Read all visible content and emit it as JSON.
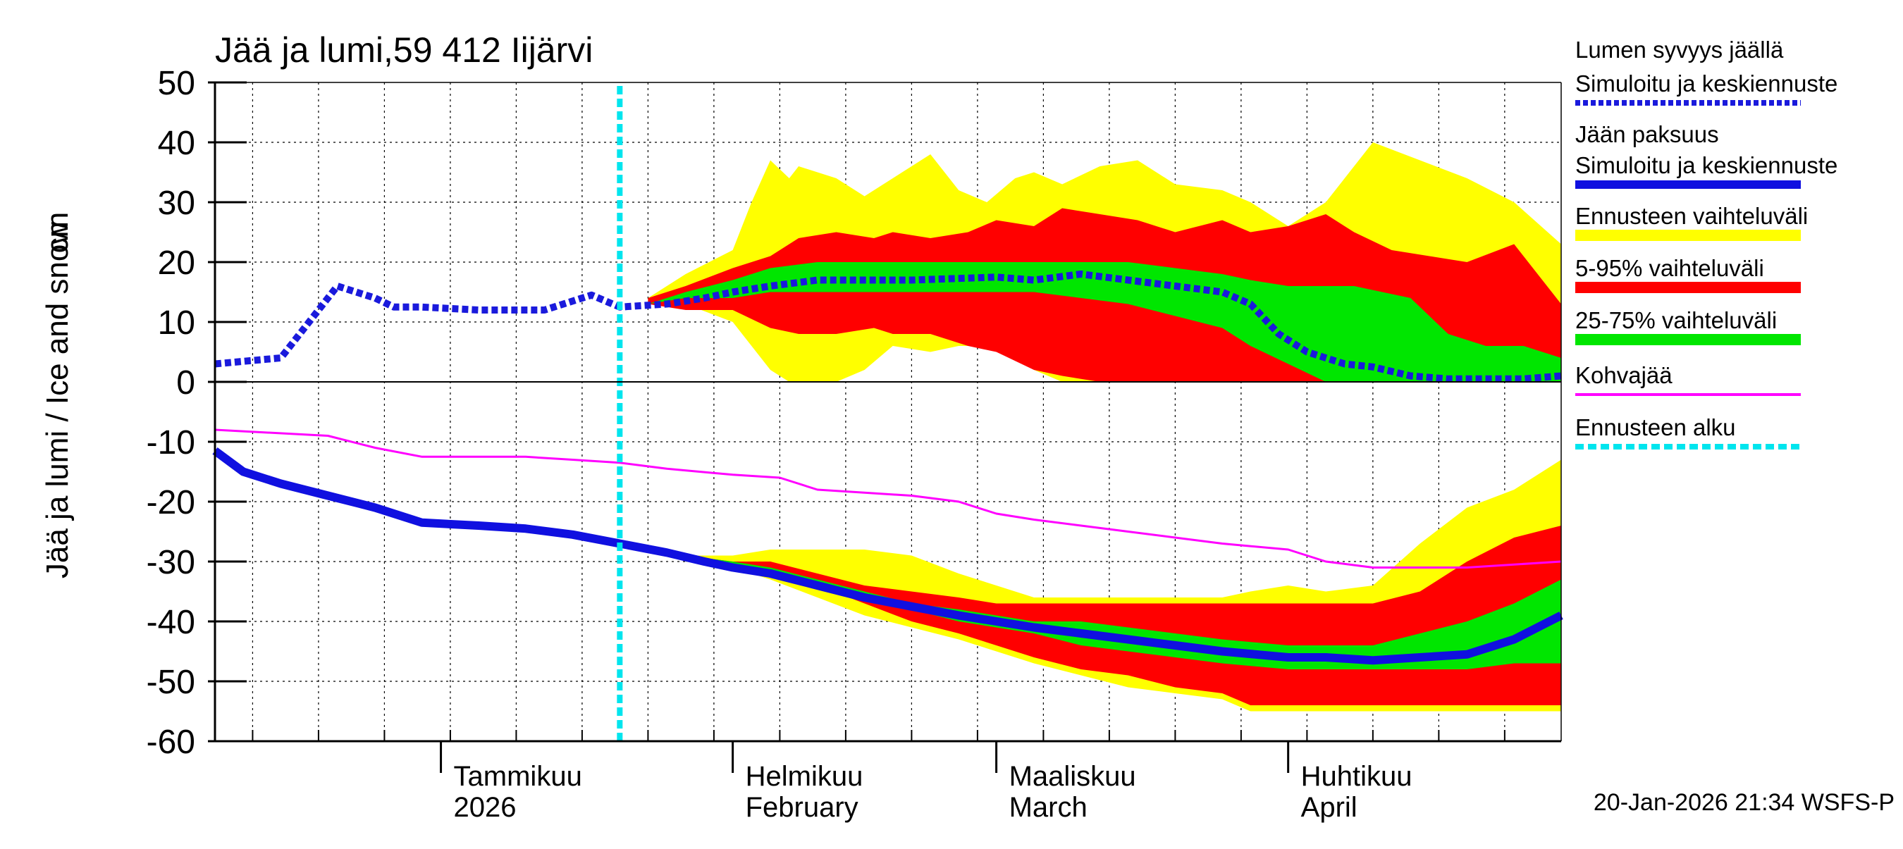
{
  "chart_data": {
    "type": "area",
    "title": "Jää ja lumi,59 412 Iijärvi",
    "ylabel": "Jää ja lumi / Ice and snow",
    "yunit": "cm",
    "ylim": [
      -60,
      50
    ],
    "yticks": [
      50,
      40,
      30,
      20,
      10,
      0,
      -10,
      -20,
      -30,
      -40,
      -50,
      -60
    ],
    "xlim": [
      "2025-12-08",
      "2026-04-30"
    ],
    "grid": true,
    "legend_position": "right",
    "forecast_start": "2026-01-20",
    "month_labels": [
      {
        "date": "2026-01-01",
        "fi": "Tammikuu",
        "en": "2026"
      },
      {
        "date": "2026-02-01",
        "fi": "Helmikuu",
        "en": "February"
      },
      {
        "date": "2026-03-01",
        "fi": "Maaliskuu",
        "en": "March"
      },
      {
        "date": "2026-04-01",
        "fi": "Huhtikuu",
        "en": "April"
      }
    ],
    "legend": [
      {
        "label": "Lumen syvyys jäällä",
        "key": ""
      },
      {
        "label": "Simuloitu ja keskiennuste",
        "key": "snow_depth",
        "color": "#1a1adc",
        "style": "dotted"
      },
      {
        "label": "Jään paksuus",
        "key": ""
      },
      {
        "label": "Simuloitu ja keskiennuste",
        "key": "ice_thickness",
        "color": "#1010e0",
        "style": "solid"
      },
      {
        "label": "Ennusteen vaihteluväli",
        "key": "range_full",
        "color": "#ffff00",
        "style": "band"
      },
      {
        "label": "5-95% vaihteluväli",
        "key": "range_5_95",
        "color": "#ff0000",
        "style": "band"
      },
      {
        "label": "25-75% vaihteluväli",
        "key": "range_25_75",
        "color": "#00e600",
        "style": "band"
      },
      {
        "label": "Kohvajää",
        "key": "slush_ice",
        "color": "#ff00ff",
        "style": "solid"
      },
      {
        "label": "Ennusteen alku",
        "key": "forecast_start",
        "color": "#00e5ee",
        "style": "dashed"
      }
    ],
    "series": [
      {
        "name": "Lumen syvyys jäällä – Simuloitu ja keskiennuste",
        "key": "snow_depth",
        "x": [
          "2025-12-08",
          "2025-12-15",
          "2025-12-21",
          "2025-12-23",
          "2025-12-25",
          "2025-12-27",
          "2025-12-30",
          "2026-01-05",
          "2026-01-12",
          "2026-01-17",
          "2026-01-20",
          "2026-01-25",
          "2026-01-29",
          "2026-02-01",
          "2026-02-05",
          "2026-02-10",
          "2026-02-20",
          "2026-03-01",
          "2026-03-05",
          "2026-03-10",
          "2026-03-15",
          "2026-03-20",
          "2026-03-25",
          "2026-03-28",
          "2026-03-31",
          "2026-04-03",
          "2026-04-07",
          "2026-04-10",
          "2026-04-14",
          "2026-04-18",
          "2026-04-22",
          "2026-04-26",
          "2026-04-30"
        ],
        "y": [
          3,
          4,
          16,
          15,
          14,
          12.5,
          12.5,
          12,
          12,
          14.5,
          12.5,
          13,
          14,
          15,
          16,
          17,
          17,
          17.5,
          17,
          18,
          17,
          16,
          15,
          13,
          8,
          5,
          3,
          2.5,
          1,
          0.5,
          0.5,
          0.5,
          1
        ]
      },
      {
        "name": "Jään paksuus – Simuloitu ja keskiennuste",
        "key": "ice_thickness",
        "x": [
          "2025-12-08",
          "2025-12-11",
          "2025-12-15",
          "2025-12-20",
          "2025-12-25",
          "2025-12-30",
          "2026-01-05",
          "2026-01-10",
          "2026-01-15",
          "2026-01-20",
          "2026-01-25",
          "2026-01-29",
          "2026-02-01",
          "2026-02-05",
          "2026-02-10",
          "2026-02-15",
          "2026-02-20",
          "2026-02-25",
          "2026-03-01",
          "2026-03-05",
          "2026-03-10",
          "2026-03-15",
          "2026-03-20",
          "2026-03-25",
          "2026-04-01",
          "2026-04-05",
          "2026-04-10",
          "2026-04-15",
          "2026-04-20",
          "2026-04-25",
          "2026-04-30"
        ],
        "y": [
          -11.5,
          -15,
          -17,
          -19,
          -21,
          -23.5,
          -24,
          -24.5,
          -25.5,
          -27,
          -28.5,
          -30,
          -31,
          -32,
          -34,
          -36,
          -37.5,
          -39,
          -40,
          -41,
          -42,
          -43,
          -44,
          -45,
          -46,
          -46,
          -46.5,
          -46,
          -45.5,
          -43,
          -39
        ]
      },
      {
        "name": "Kohvajää",
        "key": "slush_ice",
        "x": [
          "2025-12-08",
          "2025-12-20",
          "2025-12-25",
          "2025-12-30",
          "2026-01-10",
          "2026-01-15",
          "2026-01-20",
          "2026-01-25",
          "2026-02-01",
          "2026-02-06",
          "2026-02-10",
          "2026-02-15",
          "2026-02-20",
          "2026-02-25",
          "2026-03-01",
          "2026-03-05",
          "2026-03-10",
          "2026-03-15",
          "2026-03-20",
          "2026-03-25",
          "2026-04-01",
          "2026-04-05",
          "2026-04-10",
          "2026-04-20",
          "2026-04-30"
        ],
        "y": [
          -8,
          -9,
          -11,
          -12.5,
          -12.5,
          -13,
          -13.5,
          -14.5,
          -15.5,
          -16,
          -18,
          -18.5,
          -19,
          -20,
          -22,
          -23,
          -24,
          -25,
          -26,
          -27,
          -28,
          -30,
          -31,
          -31,
          -30
        ]
      }
    ],
    "bands": [
      {
        "key": "snow_full",
        "color": "#ffff00",
        "x": [
          "2026-01-23",
          "2026-01-27",
          "2026-02-01",
          "2026-02-03",
          "2026-02-05",
          "2026-02-07",
          "2026-02-08",
          "2026-02-12",
          "2026-02-15",
          "2026-02-18",
          "2026-02-22",
          "2026-02-25",
          "2026-02-28",
          "2026-03-03",
          "2026-03-05",
          "2026-03-08",
          "2026-03-12",
          "2026-03-16",
          "2026-03-20",
          "2026-03-25",
          "2026-03-28",
          "2026-04-01",
          "2026-04-05",
          "2026-04-10",
          "2026-04-15",
          "2026-04-20",
          "2026-04-25",
          "2026-04-30"
        ],
        "low": [
          13,
          13,
          10,
          6,
          2,
          0,
          0,
          0,
          2,
          6,
          5,
          6,
          6,
          4,
          2,
          0,
          0,
          0,
          0,
          0,
          0,
          0,
          0,
          0,
          0,
          0,
          0,
          0
        ],
        "high": [
          14,
          18,
          22,
          30,
          37,
          34,
          36,
          34,
          31,
          34,
          38,
          32,
          30,
          34,
          35,
          33,
          36,
          37,
          33,
          32,
          30,
          26,
          30,
          40,
          37,
          34,
          30,
          23
        ]
      },
      {
        "key": "snow_5_95",
        "color": "#ff0000",
        "x": [
          "2026-01-23",
          "2026-01-27",
          "2026-02-01",
          "2026-02-05",
          "2026-02-08",
          "2026-02-12",
          "2026-02-16",
          "2026-02-18",
          "2026-02-22",
          "2026-02-26",
          "2026-03-01",
          "2026-03-05",
          "2026-03-08",
          "2026-03-12",
          "2026-03-16",
          "2026-03-20",
          "2026-03-25",
          "2026-03-28",
          "2026-04-01",
          "2026-04-05",
          "2026-04-08",
          "2026-04-12",
          "2026-04-16",
          "2026-04-20",
          "2026-04-25",
          "2026-04-30"
        ],
        "low": [
          13,
          12,
          12,
          9,
          8,
          8,
          9,
          8,
          8,
          6,
          5,
          2,
          1,
          0,
          0,
          0,
          0,
          0,
          0,
          0,
          0,
          0,
          0,
          0,
          0,
          0
        ],
        "high": [
          14,
          16,
          19,
          21,
          24,
          25,
          24,
          25,
          24,
          25,
          27,
          26,
          29,
          28,
          27,
          25,
          27,
          25,
          26,
          28,
          25,
          22,
          21,
          20,
          23,
          13
        ]
      },
      {
        "key": "snow_25_75",
        "color": "#00e600",
        "x": [
          "2026-01-23",
          "2026-01-27",
          "2026-02-01",
          "2026-02-05",
          "2026-02-10",
          "2026-02-15",
          "2026-02-20",
          "2026-02-25",
          "2026-03-01",
          "2026-03-05",
          "2026-03-10",
          "2026-03-15",
          "2026-03-20",
          "2026-03-25",
          "2026-03-28",
          "2026-04-01",
          "2026-04-05",
          "2026-04-08",
          "2026-04-11",
          "2026-04-14",
          "2026-04-18",
          "2026-04-22",
          "2026-04-26",
          "2026-04-30"
        ],
        "low": [
          13,
          14,
          14,
          15,
          15,
          15,
          15,
          15,
          15,
          15,
          14,
          13,
          11,
          9,
          6,
          3,
          0,
          0,
          0,
          0,
          0,
          0,
          0,
          0
        ],
        "high": [
          13,
          15,
          17,
          19,
          20,
          20,
          20,
          20,
          20,
          20,
          20,
          20,
          19,
          18,
          17,
          16,
          16,
          16,
          15,
          14,
          8,
          6,
          6,
          4
        ]
      },
      {
        "key": "ice_full",
        "color": "#ffff00",
        "x": [
          "2026-01-27",
          "2026-02-01",
          "2026-02-05",
          "2026-02-10",
          "2026-02-15",
          "2026-02-20",
          "2026-02-25",
          "2026-03-01",
          "2026-03-05",
          "2026-03-10",
          "2026-03-15",
          "2026-03-20",
          "2026-03-25",
          "2026-03-28",
          "2026-04-01",
          "2026-04-05",
          "2026-04-10",
          "2026-04-15",
          "2026-04-20",
          "2026-04-25",
          "2026-04-30"
        ],
        "low": [
          -30,
          -31,
          -33,
          -36,
          -39,
          -41,
          -43,
          -45,
          -47,
          -49,
          -51,
          -52,
          -53,
          -55,
          -55,
          -55,
          -55,
          -55,
          -55,
          -55,
          -55
        ],
        "high": [
          -29,
          -29,
          -28,
          -28,
          -28,
          -29,
          -32,
          -34,
          -36,
          -36,
          -36,
          -36,
          -36,
          -35,
          -34,
          -35,
          -34,
          -27,
          -21,
          -18,
          -13
        ]
      },
      {
        "key": "ice_5_95",
        "color": "#ff0000",
        "x": [
          "2026-01-27",
          "2026-02-01",
          "2026-02-05",
          "2026-02-10",
          "2026-02-15",
          "2026-02-20",
          "2026-02-25",
          "2026-03-01",
          "2026-03-05",
          "2026-03-10",
          "2026-03-15",
          "2026-03-20",
          "2026-03-25",
          "2026-03-28",
          "2026-04-01",
          "2026-04-05",
          "2026-04-10",
          "2026-04-15",
          "2026-04-20",
          "2026-04-25",
          "2026-04-30"
        ],
        "low": [
          -30,
          -31,
          -32,
          -34,
          -37,
          -40,
          -42,
          -44,
          -46,
          -48,
          -49,
          -51,
          -52,
          -54,
          -54,
          -54,
          -54,
          -54,
          -54,
          -54,
          -54
        ],
        "high": [
          -29,
          -30,
          -30,
          -32,
          -34,
          -35,
          -36,
          -37,
          -37,
          -37,
          -37,
          -37,
          -37,
          -37,
          -37,
          -37,
          -37,
          -35,
          -30,
          -26,
          -24
        ]
      },
      {
        "key": "ice_25_75",
        "color": "#00e600",
        "x": [
          "2026-01-27",
          "2026-02-01",
          "2026-02-05",
          "2026-02-10",
          "2026-02-15",
          "2026-02-20",
          "2026-02-25",
          "2026-03-01",
          "2026-03-05",
          "2026-03-10",
          "2026-03-15",
          "2026-03-20",
          "2026-03-25",
          "2026-04-01",
          "2026-04-05",
          "2026-04-10",
          "2026-04-15",
          "2026-04-20",
          "2026-04-25",
          "2026-04-30"
        ],
        "low": [
          -30,
          -31,
          -32,
          -34,
          -36,
          -38,
          -40,
          -41,
          -42,
          -44,
          -45,
          -46,
          -47,
          -48,
          -48,
          -48,
          -48,
          -48,
          -47,
          -47
        ],
        "high": [
          -29,
          -30,
          -31,
          -33,
          -35,
          -37,
          -38,
          -39,
          -40,
          -40,
          -41,
          -42,
          -43,
          -44,
          -44,
          -44,
          -42,
          -40,
          -37,
          -33
        ]
      }
    ],
    "footer": "20-Jan-2026 21:34 WSFS-P"
  }
}
